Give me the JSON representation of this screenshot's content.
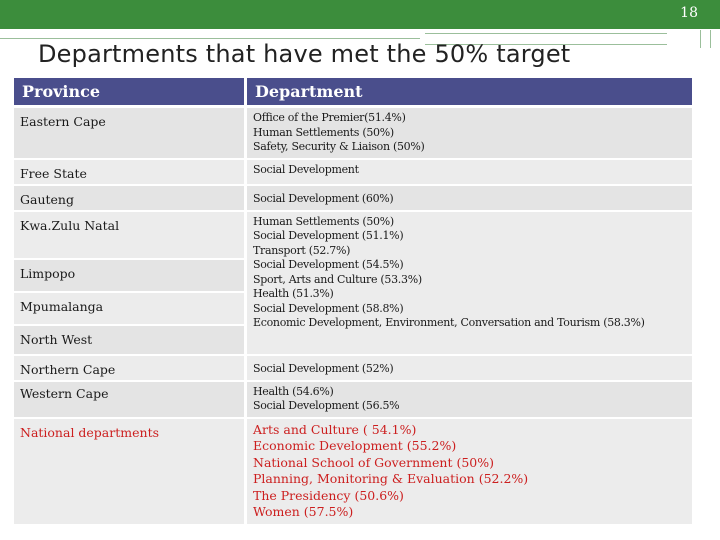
{
  "page_number": "18",
  "title": "Departments that have met the 50% target",
  "table": {
    "headers": [
      "Province",
      "Department"
    ],
    "rows": [
      {
        "province": "Eastern Cape",
        "departments": [
          "Office of the Premier(51.4%)",
          "Human Settlements (50%)",
          "Safety, Security & Liaison (50%)"
        ]
      },
      {
        "province": "Free State",
        "departments": [
          "Social Development"
        ]
      },
      {
        "province": "Gauteng",
        "departments": [
          "Social Development (60%)"
        ]
      }
    ],
    "merged_block": {
      "provinces": [
        "Kwa.Zulu Natal",
        "Limpopo",
        "Mpumalanga",
        "North West"
      ],
      "departments": [
        "Human Settlements (50%)",
        "Social Development (51.1%)",
        "Transport (52.7%)",
        "Social Development (54.5%)",
        "Sport, Arts and Culture (53.3%)",
        "Health (51.3%)",
        "Social Development (58.8%)",
        "Economic Development, Environment, Conversation and Tourism (58.3%)"
      ]
    },
    "rows_after": [
      {
        "province": "Northern Cape",
        "departments": [
          "Social Development (52%)"
        ]
      },
      {
        "province": "Western Cape",
        "departments": [
          "Health (54.6%)",
          "Social Development (56.5%"
        ]
      }
    ],
    "national": {
      "province": "National departments",
      "departments": [
        "Arts and Culture ( 54.1%)",
        "Economic Development (55.2%)",
        "National School of Government (50%)",
        "Planning, Monitoring & Evaluation (52.2%)",
        "The Presidency (50.6%)",
        "Women (57.5%)"
      ]
    }
  },
  "colors": {
    "header_bg": "#4a4e8c",
    "top_bar": "#3c8d3c",
    "national_text": "#cc1f1f"
  }
}
